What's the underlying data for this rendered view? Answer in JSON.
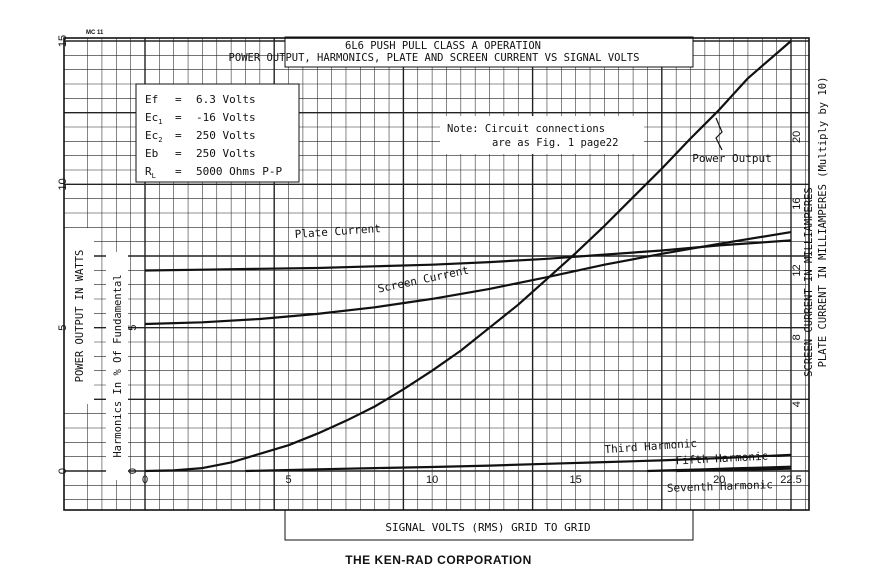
{
  "header_code": "MC 11",
  "footer": "THE KEN-RAD CORPORATION",
  "chart_data": {
    "type": "line",
    "title": "6L6 PUSH PULL CLASS A OPERATION",
    "subtitle": "POWER OUTPUT, HARMONICS, PLATE AND SCREEN CURRENT  VS  SIGNAL VOLTS",
    "xlabel": "SIGNAL VOLTS (RMS) GRID TO GRID",
    "xlim": [
      0,
      22.5
    ],
    "x_ticks": [
      "0",
      "5",
      "10",
      "15",
      "20",
      "22.5"
    ],
    "axes": {
      "power": {
        "label": "POWER OUTPUT IN WATTS",
        "range": [
          0,
          15
        ],
        "ticks": [
          "0",
          "5",
          "10",
          "15"
        ]
      },
      "harmonics": {
        "label": "Harmonics In % Of Fundamental",
        "range": [
          0,
          5
        ],
        "ticks": [
          "0",
          "5"
        ]
      },
      "current_screen": {
        "label": "SCREEN CURRENT IN MILLIAMPERES",
        "range": [
          0,
          24
        ],
        "ticks": [
          "4",
          "8",
          "12",
          "16",
          "20"
        ]
      },
      "current_plate": {
        "label": "PLATE CURRENT IN MILLIAMPERES (Multiply by 10)"
      }
    },
    "conditions": [
      {
        "sym": "Ef",
        "sub": "",
        "eq": "=",
        "val": "6.3 Volts"
      },
      {
        "sym": "Ec",
        "sub": "1",
        "eq": "=",
        "val": "-16 Volts"
      },
      {
        "sym": "Ec",
        "sub": "2",
        "eq": "=",
        "val": "250 Volts"
      },
      {
        "sym": "Eb",
        "sub": "",
        "eq": "=",
        "val": "250 Volts"
      },
      {
        "sym": "R",
        "sub": "L",
        "eq": "=",
        "val": "5000 Ohms P-P"
      }
    ],
    "note_lines": [
      "Note: Circuit connections",
      "are as Fig. 1 page22"
    ],
    "series": [
      {
        "name": "Power Output",
        "axis": "power",
        "x": [
          0,
          1,
          2,
          3,
          4,
          5,
          6,
          7,
          8,
          9,
          10,
          11,
          12,
          13,
          14,
          15,
          16,
          17,
          18,
          19,
          20,
          21,
          22.5
        ],
        "y": [
          0,
          0.02,
          0.1,
          0.3,
          0.6,
          0.9,
          1.3,
          1.75,
          2.25,
          2.85,
          3.5,
          4.2,
          5.0,
          5.8,
          6.7,
          7.6,
          8.55,
          9.55,
          10.55,
          11.6,
          12.6,
          13.7,
          15.0
        ]
      },
      {
        "name": "Plate Current",
        "axis": "current",
        "x": [
          0,
          2,
          4,
          6,
          8,
          10,
          12,
          14,
          16,
          18,
          20,
          22.5
        ],
        "y": [
          12.0,
          12.05,
          12.1,
          12.15,
          12.25,
          12.35,
          12.5,
          12.7,
          12.95,
          13.2,
          13.5,
          13.8
        ]
      },
      {
        "name": "Screen Current",
        "axis": "current",
        "x": [
          0,
          2,
          4,
          6,
          8,
          10,
          12,
          14,
          16,
          18,
          20,
          22.5
        ],
        "y": [
          8.8,
          8.9,
          9.1,
          9.4,
          9.8,
          10.3,
          10.9,
          11.6,
          12.35,
          13.0,
          13.6,
          14.3
        ]
      },
      {
        "name": "Third Harmonic",
        "axis": "harmonics",
        "x": [
          3.5,
          6,
          8,
          10,
          12,
          14,
          16,
          18,
          20,
          22.5
        ],
        "y": [
          0.0,
          0.06,
          0.1,
          0.14,
          0.19,
          0.25,
          0.31,
          0.37,
          0.45,
          0.56
        ]
      },
      {
        "name": "Fifth Harmonic",
        "axis": "harmonics",
        "x": [
          17.5,
          18.5,
          19.5,
          20.5,
          21.5,
          22.5
        ],
        "y": [
          0.0,
          0.03,
          0.06,
          0.09,
          0.12,
          0.15
        ]
      },
      {
        "name": "Seventh Harmonic",
        "axis": "harmonics",
        "x": [
          18.5,
          19.5,
          20.5,
          21.5,
          22.5
        ],
        "y": [
          0.0,
          0.02,
          0.04,
          0.06,
          0.08
        ]
      }
    ]
  }
}
